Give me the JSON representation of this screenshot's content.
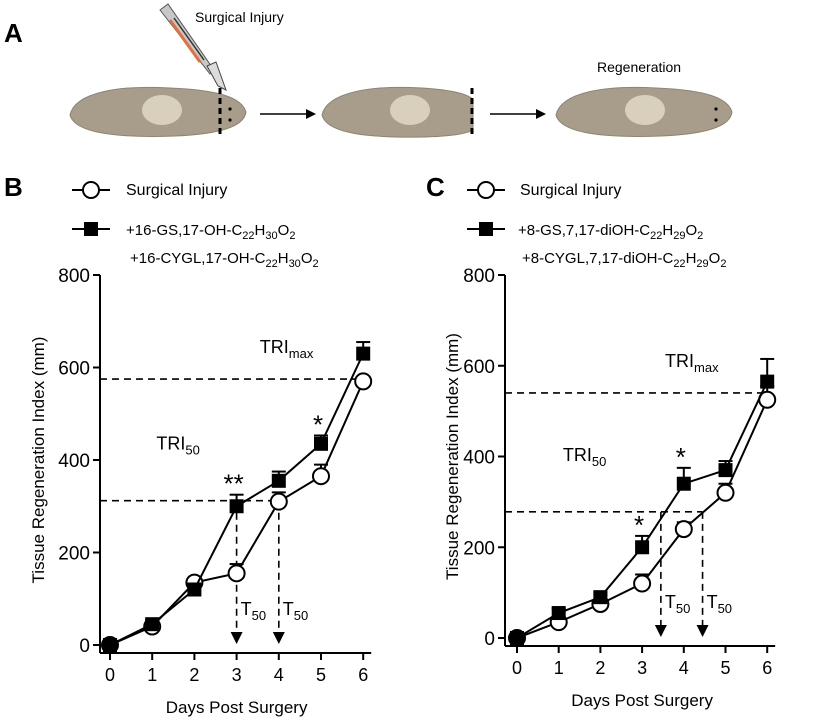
{
  "panel_a": {
    "label": "A",
    "surgical_injury_label": "Surgical Injury",
    "regeneration_label": "Regeneration"
  },
  "chart_data": [
    {
      "panel": "B",
      "type": "line",
      "title": "",
      "xlabel": "Days Post Surgery",
      "ylabel": "Tissue Regeneration Index (mm)",
      "x": [
        0,
        1,
        2,
        3,
        4,
        5,
        6
      ],
      "xlim": [
        0,
        6
      ],
      "ylim": [
        0,
        800
      ],
      "xticks": [
        "0",
        "1",
        "2",
        "3",
        "4",
        "5",
        "6"
      ],
      "yticks": [
        "0",
        "200",
        "400",
        "600",
        "800"
      ],
      "series": [
        {
          "name": "Surgical Injury",
          "marker": "open-circle",
          "values": [
            0,
            40,
            135,
            155,
            310,
            365,
            570
          ],
          "error": [
            5,
            10,
            10,
            20,
            20,
            25,
            8
          ]
        },
        {
          "name_lines": [
            "+16-GS,17-OH-C",
            "22",
            "H",
            "30",
            "O",
            "2"
          ],
          "name_line1": "+16-GS,17-OH-C22H30O2",
          "name_line2": "+16-CYGL,17-OH-C22H30O2",
          "marker": "filled-square",
          "values": [
            0,
            45,
            120,
            300,
            355,
            435,
            630
          ],
          "error": [
            5,
            10,
            10,
            25,
            20,
            18,
            25
          ]
        }
      ],
      "annotations": {
        "tri_max_label": "TRI",
        "tri_max_sub": "max",
        "tri_max_value": 575,
        "tri_50_label": "TRI",
        "tri_50_sub": "50",
        "tri_50_value": 312,
        "t50_label": "T",
        "t50_sub": "50",
        "t50_x": [
          3.0,
          4.0
        ],
        "significance": [
          {
            "x": 3,
            "text": "**"
          },
          {
            "x": 5,
            "text": "*"
          }
        ]
      }
    },
    {
      "panel": "C",
      "type": "line",
      "title": "",
      "xlabel": "Days Post Surgery",
      "ylabel": "Tissue Regeneration Index (mm)",
      "x": [
        0,
        1,
        2,
        3,
        4,
        5,
        6
      ],
      "xlim": [
        0,
        6
      ],
      "ylim": [
        0,
        800
      ],
      "xticks": [
        "0",
        "1",
        "2",
        "3",
        "4",
        "5",
        "6"
      ],
      "yticks": [
        "0",
        "200",
        "400",
        "600",
        "800"
      ],
      "series": [
        {
          "name": "Surgical Injury",
          "marker": "open-circle",
          "values": [
            0,
            35,
            75,
            120,
            240,
            320,
            525
          ],
          "error": [
            5,
            10,
            20,
            20,
            15,
            20,
            30
          ]
        },
        {
          "name_line1": "+8-GS,7,17-diOH-C22H29O2",
          "name_line2": "+8-CYGL,7,17-diOH-C22H29O2",
          "marker": "filled-square",
          "values": [
            0,
            55,
            90,
            200,
            340,
            370,
            565
          ],
          "error": [
            5,
            10,
            10,
            25,
            35,
            20,
            50
          ]
        }
      ],
      "annotations": {
        "tri_max_label": "TRI",
        "tri_max_sub": "max",
        "tri_max_value": 540,
        "tri_50_label": "TRI",
        "tri_50_sub": "50",
        "tri_50_value": 278,
        "t50_label": "T",
        "t50_sub": "50",
        "t50_x": [
          3.45,
          4.45
        ],
        "significance": [
          {
            "x": 3,
            "text": "*"
          },
          {
            "x": 4,
            "text": "*"
          }
        ]
      }
    }
  ],
  "legend_b": {
    "label": "B",
    "open_name": "Surgical Injury",
    "filled_l1_a": "+16-GS,17-OH-C",
    "filled_l1_b": "H",
    "filled_l1_c": "O",
    "filled_l2_a": "+16-CYGL,17-OH-C",
    "sub_22": "22",
    "sub_30": "30",
    "sub_2": "2"
  },
  "legend_c": {
    "label": "C",
    "open_name": "Surgical Injury",
    "filled_l1_a": "+8-GS,7,17-diOH-C",
    "filled_l1_b": "H",
    "filled_l1_c": "O",
    "filled_l2_a": "+8-CYGL,7,17-diOH-C",
    "sub_22": "22",
    "sub_29": "29",
    "sub_2": "2"
  }
}
